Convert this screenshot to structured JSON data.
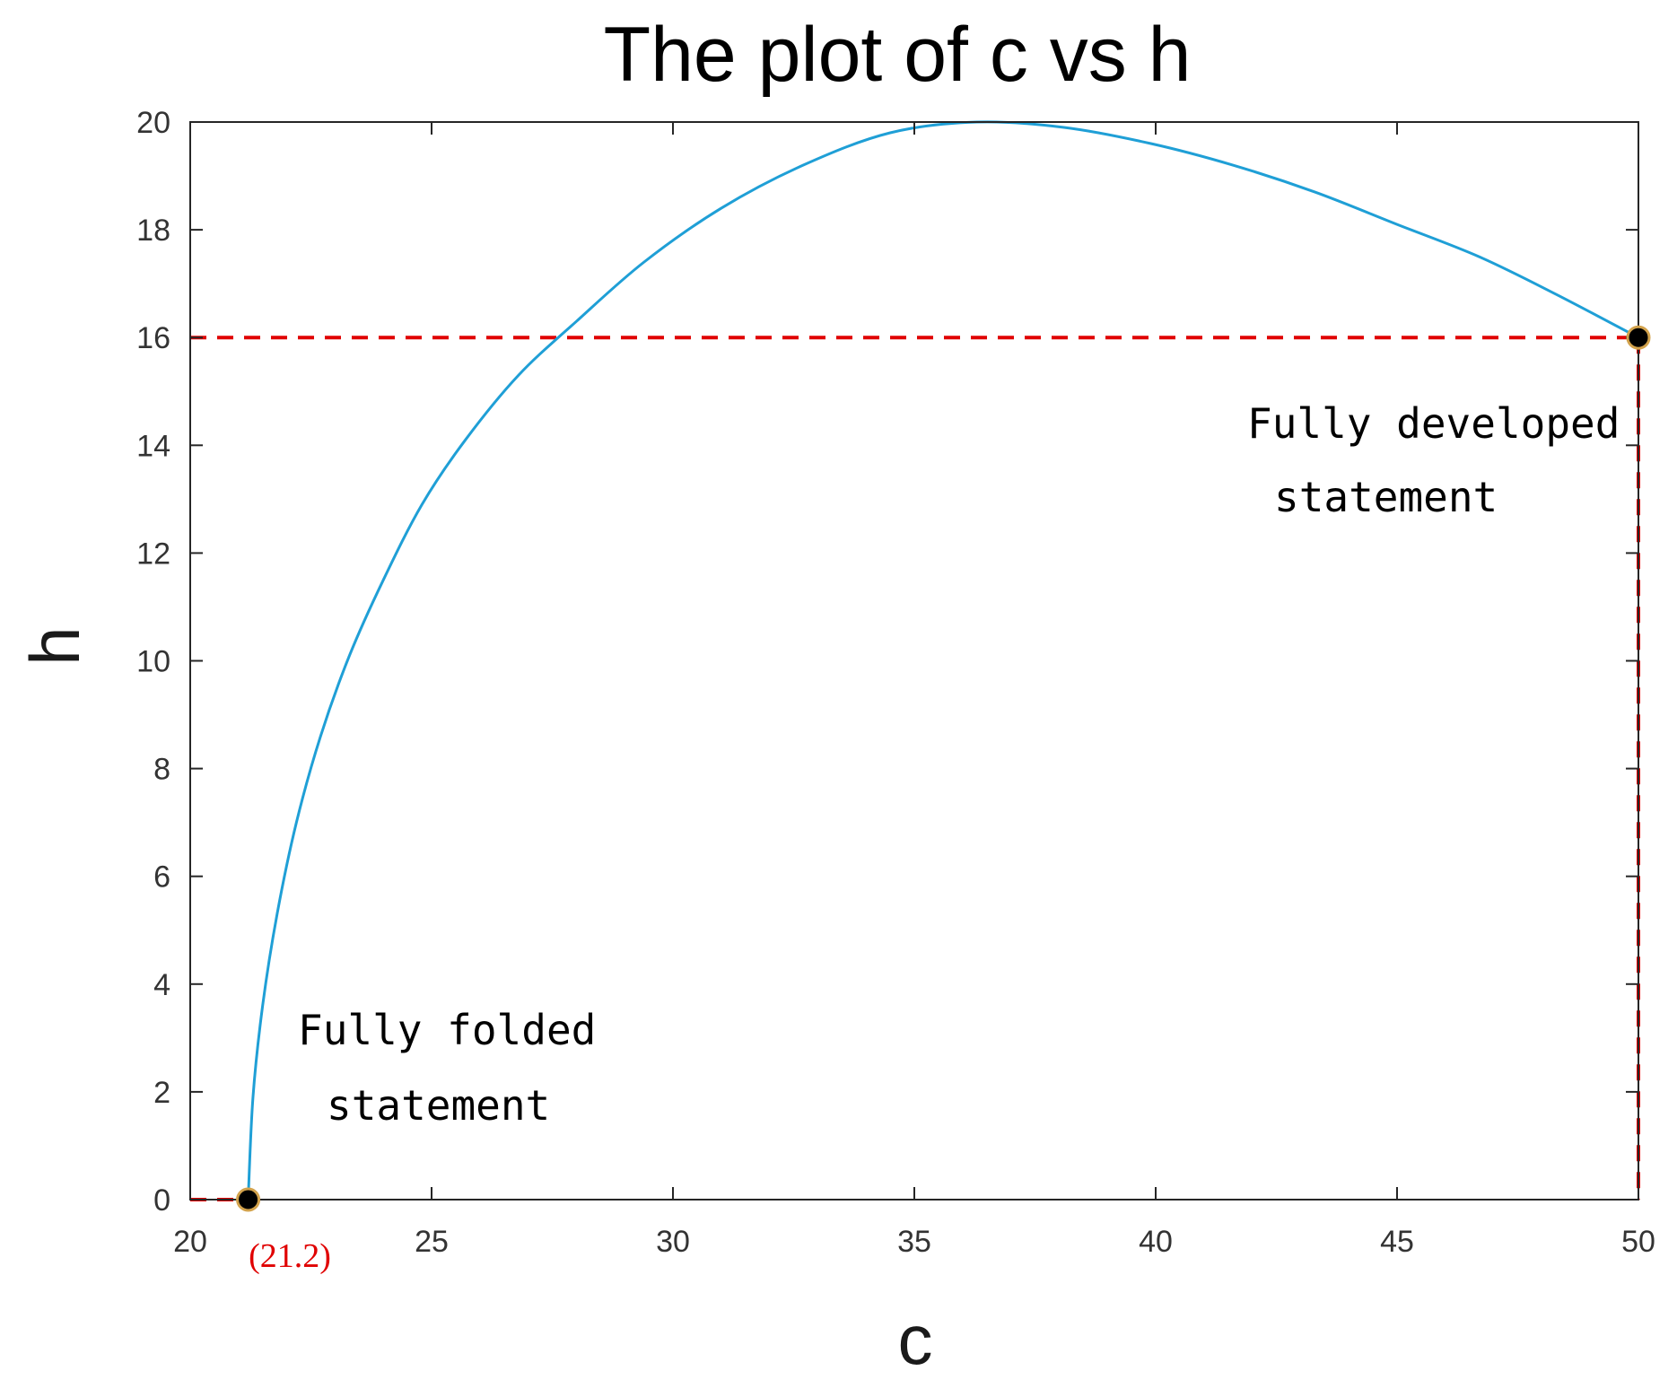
{
  "chart_data": {
    "type": "line",
    "title": "The plot of c vs h",
    "xlabel": "c",
    "ylabel": "h",
    "xlim": [
      20,
      50
    ],
    "ylim": [
      0,
      20
    ],
    "xticks": [
      20,
      25,
      30,
      35,
      40,
      45,
      50
    ],
    "yticks": [
      0,
      2,
      4,
      6,
      8,
      10,
      12,
      14,
      16,
      18,
      20
    ],
    "grid": false,
    "series": [
      {
        "color": "#1f9fd6",
        "x": [
          21.2,
          21.3,
          21.5,
          21.8,
          22.2,
          22.7,
          23.3,
          24.0,
          24.8,
          25.7,
          26.8,
          28.0,
          29.4,
          31.0,
          32.7,
          34.5,
          36.3,
          38.1,
          39.9,
          41.6,
          43.3,
          45.0,
          46.7,
          48.3,
          50.0
        ],
        "y": [
          0.0,
          1.9,
          3.6,
          5.3,
          7.0,
          8.6,
          10.1,
          11.5,
          12.9,
          14.1,
          15.3,
          16.3,
          17.4,
          18.4,
          19.2,
          19.8,
          20.0,
          19.9,
          19.6,
          19.2,
          18.7,
          18.1,
          17.5,
          16.8,
          16.0
        ]
      }
    ],
    "reference_lines": [
      {
        "color": "#e00000",
        "style": "dashed",
        "from": [
          20,
          16
        ],
        "to": [
          50,
          16
        ]
      },
      {
        "color": "#e00000",
        "style": "dashed",
        "from": [
          50,
          16
        ],
        "to": [
          50,
          0
        ]
      },
      {
        "color": "#e00000",
        "style": "dashed",
        "from": [
          20,
          0
        ],
        "to": [
          21.2,
          0
        ]
      }
    ],
    "points": [
      {
        "x": 21.2,
        "y": 0
      },
      {
        "x": 50,
        "y": 16
      }
    ],
    "annotations": [
      {
        "lines": [
          "Fully folded",
          "statement"
        ]
      },
      {
        "lines": [
          "Fully developed",
          "statement"
        ]
      },
      {
        "text": "(21.2)",
        "color": "#e00000"
      }
    ]
  }
}
